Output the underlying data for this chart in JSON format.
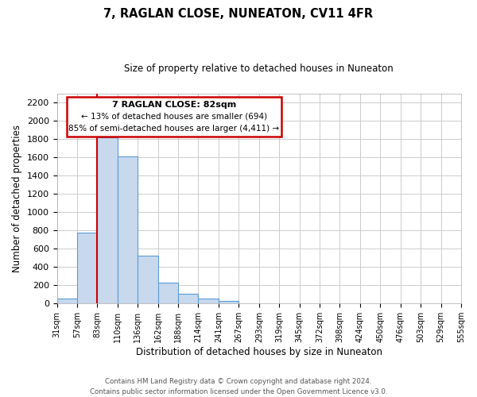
{
  "title": "7, RAGLAN CLOSE, NUNEATON, CV11 4FR",
  "subtitle": "Size of property relative to detached houses in Nuneaton",
  "bar_values": [
    50,
    775,
    1820,
    1610,
    520,
    230,
    105,
    55,
    25,
    0,
    0,
    0,
    0,
    0,
    0,
    0,
    0,
    0,
    0,
    0
  ],
  "categories": [
    "31sqm",
    "57sqm",
    "83sqm",
    "110sqm",
    "136sqm",
    "162sqm",
    "188sqm",
    "214sqm",
    "241sqm",
    "267sqm",
    "293sqm",
    "319sqm",
    "345sqm",
    "372sqm",
    "398sqm",
    "424sqm",
    "450sqm",
    "476sqm",
    "503sqm",
    "529sqm",
    "555sqm"
  ],
  "bar_color": "#c8d9ee",
  "bar_edge_color": "#5b9bd5",
  "marker_line_color": "#cc0000",
  "xlabel": "Distribution of detached houses by size in Nuneaton",
  "ylabel": "Number of detached properties",
  "ylim": [
    0,
    2300
  ],
  "yticks": [
    0,
    200,
    400,
    600,
    800,
    1000,
    1200,
    1400,
    1600,
    1800,
    2000,
    2200
  ],
  "annotation_title": "7 RAGLAN CLOSE: 82sqm",
  "annotation_line1": "← 13% of detached houses are smaller (694)",
  "annotation_line2": "85% of semi-detached houses are larger (4,411) →",
  "annotation_box_color": "#ffffff",
  "annotation_box_edge": "#cc0000",
  "footer_line1": "Contains HM Land Registry data © Crown copyright and database right 2024.",
  "footer_line2": "Contains public sector information licensed under the Open Government Licence v3.0.",
  "background_color": "#ffffff",
  "grid_color": "#cccccc"
}
